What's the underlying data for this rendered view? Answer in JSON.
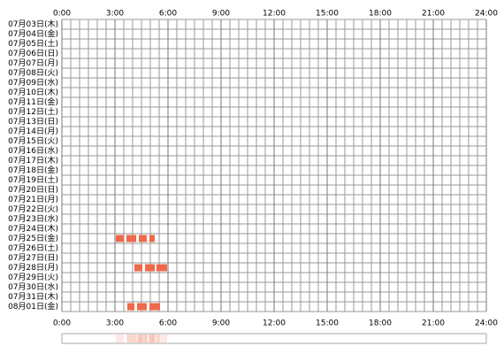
{
  "chart_data": {
    "type": "timeline",
    "xlim": [
      0,
      24
    ],
    "xticks": [
      {
        "value": 0,
        "label": "0:00"
      },
      {
        "value": 3,
        "label": "3:00"
      },
      {
        "value": 6,
        "label": "6:00"
      },
      {
        "value": 9,
        "label": "9:00"
      },
      {
        "value": 12,
        "label": "12:00"
      },
      {
        "value": 15,
        "label": "15:00"
      },
      {
        "value": 18,
        "label": "18:00"
      },
      {
        "value": 21,
        "label": "21:00"
      },
      {
        "value": 24,
        "label": "24:00"
      }
    ],
    "color": "#f0694a",
    "rows": [
      {
        "label": "07月03日(木)",
        "segments": []
      },
      {
        "label": "07月04日(金)",
        "segments": []
      },
      {
        "label": "07月05日(土)",
        "segments": []
      },
      {
        "label": "07月06日(日)",
        "segments": []
      },
      {
        "label": "07月07日(月)",
        "segments": []
      },
      {
        "label": "07月08日(火)",
        "segments": []
      },
      {
        "label": "07月09日(水)",
        "segments": []
      },
      {
        "label": "07月10日(木)",
        "segments": []
      },
      {
        "label": "07月11日(金)",
        "segments": []
      },
      {
        "label": "07月12日(土)",
        "segments": []
      },
      {
        "label": "07月13日(日)",
        "segments": []
      },
      {
        "label": "07月14日(月)",
        "segments": []
      },
      {
        "label": "07月15日(火)",
        "segments": []
      },
      {
        "label": "07月16日(水)",
        "segments": []
      },
      {
        "label": "07月17日(木)",
        "segments": []
      },
      {
        "label": "07月18日(金)",
        "segments": []
      },
      {
        "label": "07月19日(土)",
        "segments": []
      },
      {
        "label": "07月20日(日)",
        "segments": []
      },
      {
        "label": "07月21日(月)",
        "segments": []
      },
      {
        "label": "07月22日(火)",
        "segments": []
      },
      {
        "label": "07月23日(水)",
        "segments": []
      },
      {
        "label": "07月24日(木)",
        "segments": []
      },
      {
        "label": "07月25日(金)",
        "segments": [
          [
            3.05,
            3.5
          ],
          [
            3.65,
            4.2
          ],
          [
            4.35,
            4.8
          ],
          [
            4.95,
            5.25
          ]
        ]
      },
      {
        "label": "07月26日(土)",
        "segments": []
      },
      {
        "label": "07月27日(日)",
        "segments": []
      },
      {
        "label": "07月28日(月)",
        "segments": [
          [
            4.1,
            4.55
          ],
          [
            4.7,
            5.25
          ],
          [
            5.35,
            5.95
          ]
        ]
      },
      {
        "label": "07月29日(火)",
        "segments": []
      },
      {
        "label": "07月30日(水)",
        "segments": []
      },
      {
        "label": "07月31日(木)",
        "segments": []
      },
      {
        "label": "08月01日(金)",
        "segments": [
          [
            3.7,
            4.1
          ],
          [
            4.25,
            4.8
          ],
          [
            4.95,
            5.55
          ]
        ]
      }
    ]
  }
}
